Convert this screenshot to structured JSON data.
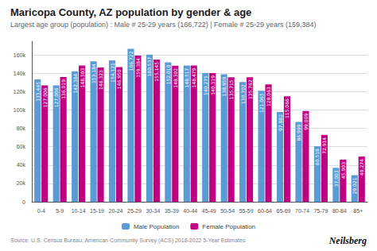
{
  "chart_data": {
    "type": "bar",
    "title": "Maricopa County, AZ population by gender & age",
    "subtitle": "Largest age group (population) : Male # 25-29 years (166,722) | Female # 25-29 years (159,384)",
    "annotations": [
      "Source: U.S. Census Bureau, American Community Survey (ACS) 2018-2022 5-Year Estimates",
      "Neilsberg"
    ],
    "categories": [
      "0-4",
      "5-9",
      "10-14",
      "15-19",
      "20-24",
      "25-29",
      "30-34",
      "35-39",
      "40-44",
      "45-49",
      "50-54",
      "55-59",
      "60-64",
      "65-69",
      "70-74",
      "75-79",
      "80-84",
      "85+"
    ],
    "series": [
      {
        "name": "Male Population",
        "color": "#5b9bd5",
        "values": [
          133445,
          127006,
          142384,
          153184,
          154121,
          166722,
          160537,
          152010,
          148517,
          140275,
          138959,
          130702,
          121065,
          97882,
          86999,
          60518,
          37003,
          29021
        ],
        "value_labels": [
          "133,445",
          "127,006",
          "142,384",
          "153,184",
          "154,121",
          "166,722",
          "160,537",
          "152,010",
          "148,517",
          "140,275",
          "138,959",
          "130,702",
          "121,065",
          "97,882",
          "86,999",
          "60,518",
          "37,003",
          "29,021"
        ]
      },
      {
        "name": "Female Population",
        "color": "#c00080",
        "values": [
          127006,
          136019,
          148503,
          146323,
          146950,
          159384,
          155145,
          148302,
          148479,
          140319,
          135715,
          135762,
          128063,
          115066,
          99009,
          72914,
          45903,
          49274
        ],
        "value_labels": [
          "127,006",
          "136,019",
          "148,503",
          "146,323",
          "146,950",
          "159,384",
          "155,145",
          "148,302",
          "148,479",
          "140,319",
          "135,715",
          "135,762",
          "128,063",
          "115,066",
          "99,009",
          "72,914",
          "45,903",
          "49,274"
        ]
      }
    ],
    "ylim": [
      0,
      175000
    ],
    "yticks": [
      0,
      {
        "value": 20000,
        "label": "20k"
      },
      {
        "value": 40000,
        "label": "40k"
      },
      {
        "value": 60000,
        "label": "60k"
      },
      {
        "value": 80000,
        "label": "80k"
      },
      {
        "value": 100000,
        "label": "100k"
      },
      {
        "value": 120000,
        "label": "120k"
      },
      {
        "value": 140000,
        "label": "140k"
      },
      {
        "value": 160000,
        "label": "160k"
      }
    ],
    "grid": true,
    "legend": "bottom",
    "data_labels": true
  }
}
